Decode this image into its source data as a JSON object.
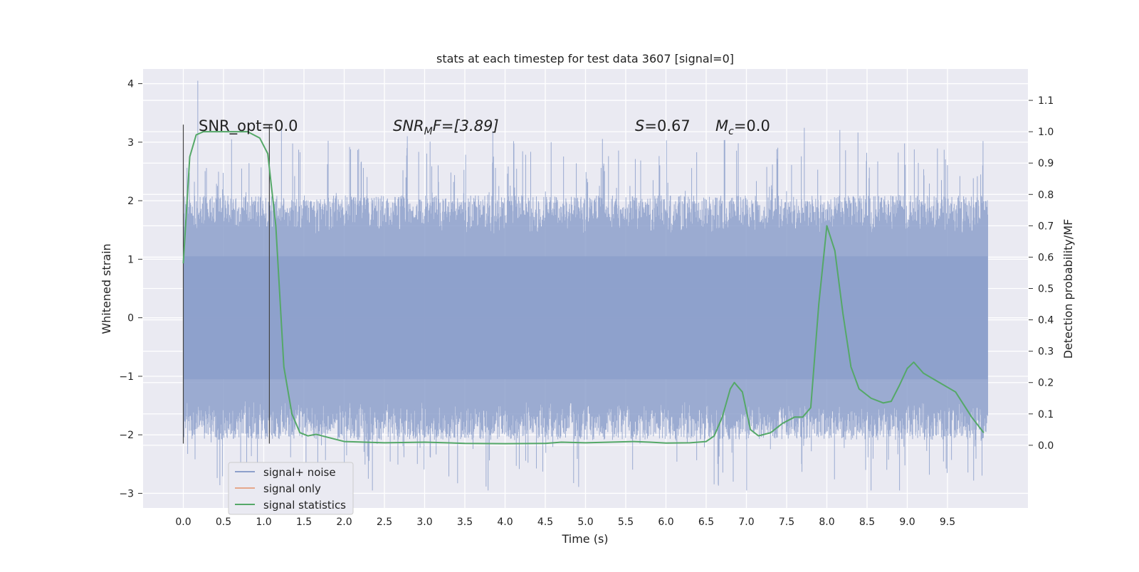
{
  "chart_data": {
    "type": "line",
    "title": "stats at each timestep for test data 3607 [signal=0]",
    "xlabel": "Time (s)",
    "ylabel_left": "Whitened strain",
    "ylabel_right": "Detection probability/MF",
    "xlim": [
      -0.5,
      10.5
    ],
    "ylim_left": [
      -3.25,
      4.25
    ],
    "ylim_right": [
      -0.2,
      1.2
    ],
    "grid": true,
    "x_ticks": [
      0.0,
      0.5,
      1.0,
      1.5,
      2.0,
      2.5,
      3.0,
      3.5,
      4.0,
      4.5,
      5.0,
      5.5,
      6.0,
      6.5,
      7.0,
      7.5,
      8.0,
      8.5,
      9.0,
      9.5
    ],
    "x_tick_labels": [
      "0.0",
      "0.5",
      "1.0",
      "1.5",
      "2.0",
      "2.5",
      "3.0",
      "3.5",
      "4.0",
      "4.5",
      "5.0",
      "5.5",
      "6.0",
      "6.5",
      "7.0",
      "7.5",
      "8.0",
      "8.5",
      "9.0",
      "9.5"
    ],
    "y_left_ticks": [
      -3,
      -2,
      -1,
      0,
      1,
      2,
      3,
      4
    ],
    "y_left_tick_labels": [
      "−3",
      "−2",
      "−1",
      "0",
      "1",
      "2",
      "3",
      "4"
    ],
    "y_right_ticks": [
      0.0,
      0.1,
      0.2,
      0.3,
      0.4,
      0.5,
      0.6,
      0.7,
      0.8,
      0.9,
      1.0,
      1.1
    ],
    "y_right_tick_labels": [
      "0.0",
      "0.1",
      "0.2",
      "0.3",
      "0.4",
      "0.5",
      "0.6",
      "0.7",
      "0.8",
      "0.9",
      "1.0",
      "1.1"
    ],
    "legend_position": "lower-left",
    "legend": [
      {
        "label": "signal+ noise",
        "color": "#8da0cb"
      },
      {
        "label": "signal only",
        "color": "#e5a78b"
      },
      {
        "label": "signal statistics",
        "color": "#55a868"
      }
    ],
    "annotations": {
      "snr_opt": "SNR_opt=0.0",
      "snr_mf_prefix": "SNR",
      "snr_mf_sub": "M",
      "snr_mf_suffix": "F=[3.89]",
      "s_prefix": "S",
      "s_value": "=0.67",
      "mc_prefix": "M",
      "mc_sub": "c",
      "mc_value": "=0.0"
    },
    "vertical_markers_x": [
      0.0,
      1.07
    ],
    "noise_series": {
      "name": "signal+ noise",
      "x_range": [
        0.0,
        10.0
      ],
      "envelope_typical": [
        -1.9,
        1.9
      ],
      "peak_max": 4.05,
      "peak_min": -2.95
    },
    "signal_statistics": {
      "name": "signal statistics",
      "x": [
        0.0,
        0.08,
        0.16,
        0.25,
        0.4,
        0.6,
        0.8,
        0.95,
        1.05,
        1.15,
        1.25,
        1.35,
        1.45,
        1.55,
        1.65,
        1.8,
        2.0,
        2.5,
        3.0,
        3.5,
        4.0,
        4.5,
        4.7,
        5.0,
        5.3,
        5.6,
        5.8,
        6.0,
        6.3,
        6.5,
        6.6,
        6.7,
        6.8,
        6.85,
        6.95,
        7.05,
        7.15,
        7.3,
        7.45,
        7.6,
        7.7,
        7.8,
        7.9,
        8.0,
        8.1,
        8.2,
        8.3,
        8.4,
        8.55,
        8.7,
        8.8,
        8.9,
        9.0,
        9.08,
        9.2,
        9.4,
        9.6,
        9.8,
        9.95
      ],
      "y": [
        0.58,
        0.92,
        0.99,
        1.0,
        1.0,
        1.0,
        1.0,
        0.98,
        0.93,
        0.7,
        0.25,
        0.1,
        0.04,
        0.03,
        0.035,
        0.025,
        0.012,
        0.008,
        0.01,
        0.006,
        0.005,
        0.006,
        0.01,
        0.008,
        0.01,
        0.012,
        0.01,
        0.007,
        0.008,
        0.012,
        0.03,
        0.09,
        0.18,
        0.2,
        0.17,
        0.05,
        0.03,
        0.04,
        0.07,
        0.09,
        0.09,
        0.12,
        0.45,
        0.7,
        0.62,
        0.42,
        0.25,
        0.18,
        0.15,
        0.135,
        0.14,
        0.19,
        0.245,
        0.265,
        0.23,
        0.2,
        0.17,
        0.09,
        0.04
      ]
    }
  }
}
